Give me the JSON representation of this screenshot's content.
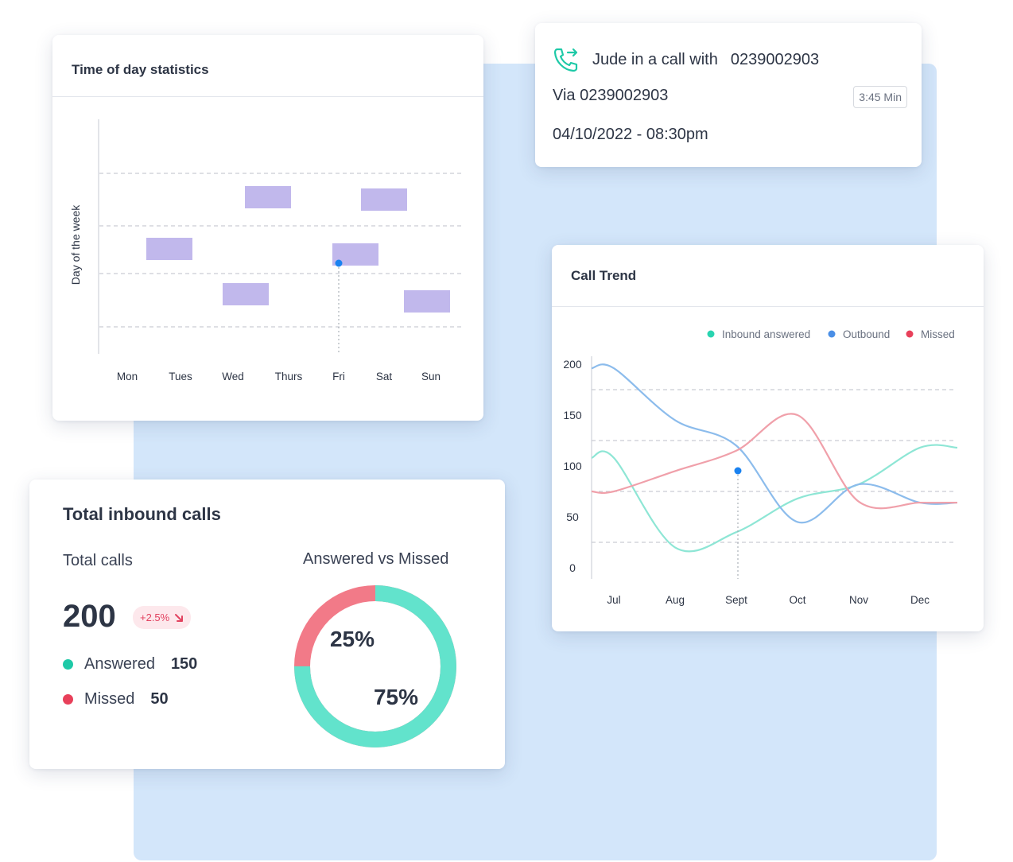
{
  "time_of_day": {
    "title": "Time of day statistics",
    "ylabel": "Day of the week",
    "days": [
      "Mon",
      "Tues",
      "Wed",
      "Thurs",
      "Fri",
      "Sat",
      "Sun"
    ],
    "bar_color": "#c1b8ec",
    "marker_color": "#1a82f0"
  },
  "call_info": {
    "caller": "Jude in a call with",
    "number": "0239002903",
    "via": "Via 0239002903",
    "duration": "3:45 Min",
    "datetime": "04/10/2022 - 08:30pm",
    "icon": "phone-transfer-icon",
    "icon_color": "#1ec9a7"
  },
  "call_trend": {
    "title": "Call Trend",
    "chart_data": {
      "type": "line",
      "categories": [
        "Jul",
        "Aug",
        "Sept",
        "Oct",
        "Nov",
        "Dec"
      ],
      "ylim": [
        0,
        200
      ],
      "yticks": [
        0,
        50,
        100,
        150,
        200
      ],
      "grid": true,
      "legend_position": "top-right",
      "series": [
        {
          "name": "Inbound answered",
          "color": "#8ee6d5",
          "values": [
            108,
            20,
            35,
            68,
            82,
            118
          ]
        },
        {
          "name": "Outbound",
          "color": "#8cbcec",
          "values": [
            196,
            145,
            120,
            45,
            82,
            64
          ]
        },
        {
          "name": "Missed",
          "color": "#f0a0aa",
          "values": [
            75,
            95,
            115,
            150,
            65,
            64
          ]
        }
      ]
    },
    "legend_dot_colors": [
      "#29d4b0",
      "#4a8fe6",
      "#e8405a"
    ]
  },
  "inbound": {
    "title": "Total inbound calls",
    "total_label": "Total calls",
    "total_value": "200",
    "change": "+2.5%",
    "answered_label": "Answered",
    "answered_value": "150",
    "missed_label": "Missed",
    "missed_value": "50",
    "donut_title": "Answered vs Missed",
    "missed_pct_label": "25%",
    "answered_pct_label": "75%",
    "answered_fraction": 0.75,
    "missed_fraction": 0.25,
    "answered_color": "#62e3cc",
    "missed_color": "#f27a88",
    "answered_dot": "#1ec9a7",
    "missed_dot": "#e8405a"
  }
}
